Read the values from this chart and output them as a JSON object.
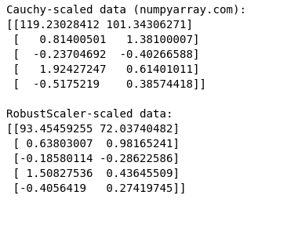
{
  "background_color": "#ffffff",
  "text_color": "#000000",
  "font_family": "monospace",
  "font_size": 10.2,
  "line1": "Cauchy-scaled data (numpyarray.com):",
  "line2": "[[119.23028412 101.34306271]",
  "line3": " [   0.81400501   1.38100007]",
  "line4": " [  -0.23704692  -0.40266588]",
  "line5": " [   1.92427247   0.61401011]",
  "line6": " [  -0.5175219    0.38574418]]",
  "line7": "",
  "line8": "RobustScaler-scaled data:",
  "line9": "[[93.45459255 72.03740482]",
  "line10": " [ 0.63803007  0.98165241]",
  "line11": " [-0.18580114 -0.28622586]",
  "line12": " [ 1.50827536  0.43645509]",
  "line13": " [-0.4056419   0.27419745]]"
}
